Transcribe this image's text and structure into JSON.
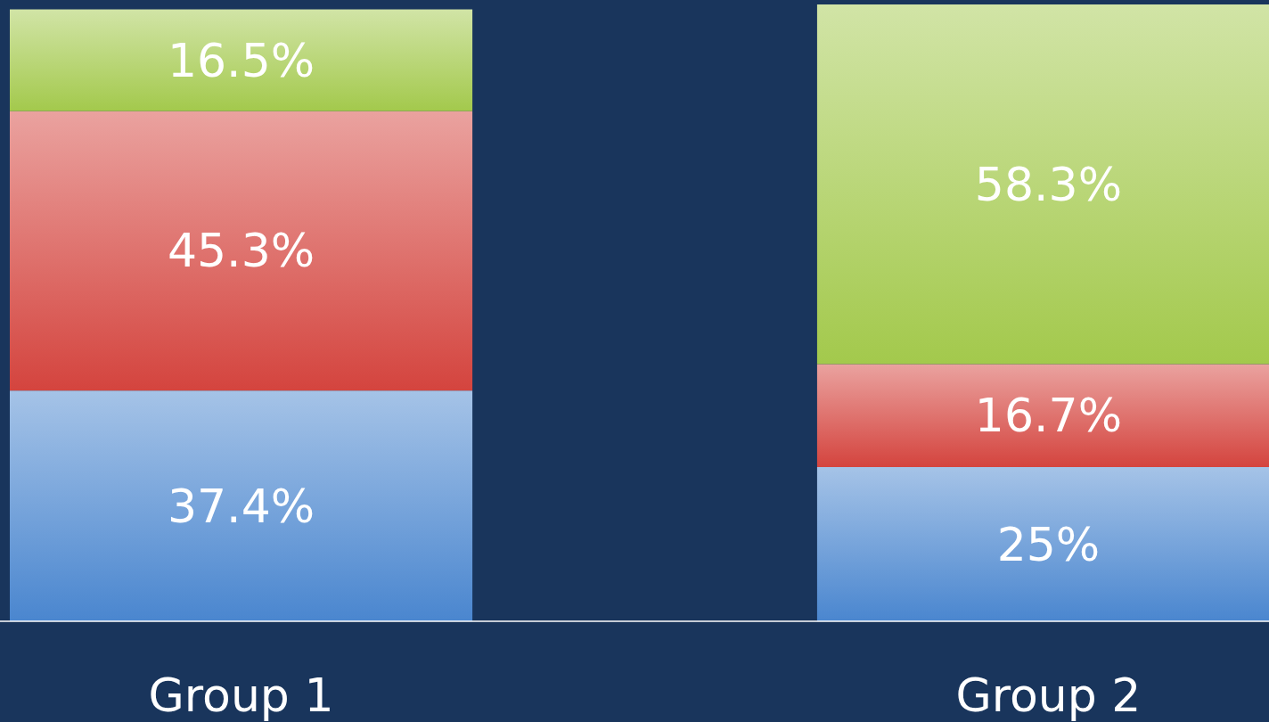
{
  "chart_data": {
    "type": "bar",
    "stacked": true,
    "categories": [
      "Group 1",
      "Group 2"
    ],
    "series": [
      {
        "color": "#4a86cf",
        "values": [
          37.4,
          25
        ],
        "value_labels": [
          "37.4%",
          "25%"
        ]
      },
      {
        "color": "#d4443e",
        "values": [
          45.3,
          16.7
        ],
        "value_labels": [
          "45.3%",
          "16.7%"
        ]
      },
      {
        "color": "#a3c94c",
        "values": [
          16.5,
          58.3
        ],
        "value_labels": [
          "16.5%",
          "58.3%"
        ]
      }
    ]
  }
}
